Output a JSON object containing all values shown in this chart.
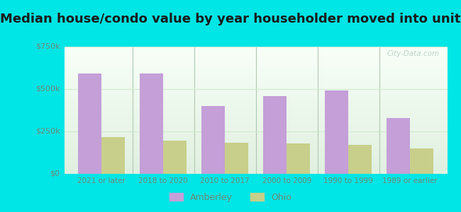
{
  "title": "Median house/condo value by year householder moved into unit",
  "categories": [
    "2021 or later",
    "2018 to 2020",
    "2010 to 2017",
    "2000 to 2009",
    "1990 to 1999",
    "1989 or earlier"
  ],
  "amberley_values": [
    590000,
    590000,
    400000,
    460000,
    490000,
    330000
  ],
  "ohio_values": [
    215000,
    195000,
    185000,
    180000,
    170000,
    150000
  ],
  "amberley_color": "#c49fd8",
  "ohio_color": "#c8cf8a",
  "background_outer": "#00e5e5",
  "background_inner_top": "#e8f5e8",
  "background_inner_bottom": "#f8fff8",
  "title_fontsize": 13,
  "ylim": [
    0,
    750000
  ],
  "yticks": [
    0,
    250000,
    500000,
    750000
  ],
  "ytick_labels": [
    "$0",
    "$250k",
    "$500k",
    "$750k"
  ],
  "legend_labels": [
    "Amberley",
    "Ohio"
  ],
  "bar_width": 0.38,
  "watermark": "City-Data.com",
  "watermark_color": "#b0ccc0",
  "grid_color": "#d0e8d0",
  "separator_color": "#b0c8b0",
  "tick_color": "#708878",
  "title_color": "#1a1a1a"
}
